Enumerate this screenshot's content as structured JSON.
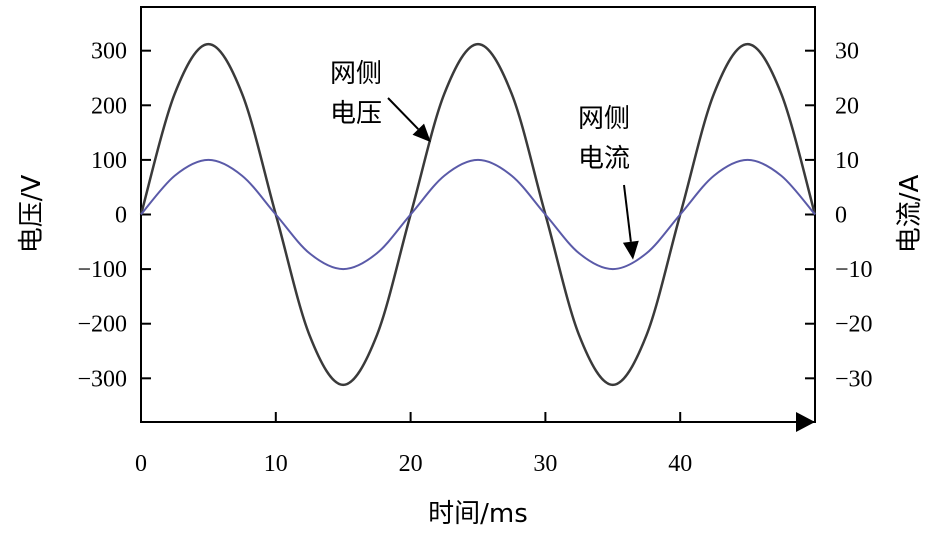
{
  "chart_data": {
    "type": "line",
    "xlabel": "时间/ms",
    "ylabel_left": "电压/V",
    "ylabel_right": "电流/A",
    "xlim": [
      0,
      50
    ],
    "ylim_left": [
      -380,
      380
    ],
    "ylim_right": [
      -38,
      38
    ],
    "x_ticks": [
      0,
      10,
      20,
      30,
      40
    ],
    "x_tick_labels": [
      "0",
      "10",
      "20",
      "30",
      "40"
    ],
    "y_left_ticks": [
      300,
      200,
      100,
      0,
      -100,
      -200,
      -300
    ],
    "y_left_tick_labels": [
      "300",
      "200",
      "100",
      "0",
      "−100",
      "−200",
      "−300"
    ],
    "y_right_ticks": [
      30,
      20,
      10,
      0,
      -10,
      -20,
      -30
    ],
    "y_right_tick_labels": [
      "30",
      "20",
      "10",
      "0",
      "−10",
      "−20",
      "−30"
    ],
    "grid": false,
    "series": [
      {
        "name": "网侧电压",
        "axis": "left",
        "color": "#3a3a3a",
        "x": [
          0,
          2.5,
          5,
          7.5,
          10,
          12.5,
          15,
          17.5,
          20,
          22.5,
          25,
          27.5,
          30,
          32.5,
          35,
          37.5,
          40,
          42.5,
          45,
          47.5,
          50
        ],
        "values": [
          0,
          221,
          312,
          221,
          0,
          -221,
          -312,
          -221,
          0,
          221,
          312,
          221,
          0,
          -221,
          -312,
          -221,
          0,
          221,
          312,
          221,
          0
        ]
      },
      {
        "name": "网侧电流",
        "axis": "right",
        "color": "#5a5aa8",
        "x": [
          0,
          2.5,
          5,
          7.5,
          10,
          12.5,
          15,
          17.5,
          20,
          22.5,
          25,
          27.5,
          30,
          32.5,
          35,
          37.5,
          40,
          42.5,
          45,
          47.5,
          50
        ],
        "values": [
          0,
          7.1,
          10,
          7.1,
          0,
          -7.1,
          -10,
          -7.1,
          0,
          7.1,
          10,
          7.1,
          0,
          -7.1,
          -10,
          -7.1,
          0,
          7.1,
          10,
          7.1,
          0
        ]
      }
    ],
    "annotations": [
      {
        "line1": "网侧",
        "line2": "电压",
        "target_series": 0,
        "target_x": 21.5
      },
      {
        "line1": "网侧",
        "line2": "电流",
        "target_series": 1,
        "target_x": 36.5
      }
    ]
  }
}
